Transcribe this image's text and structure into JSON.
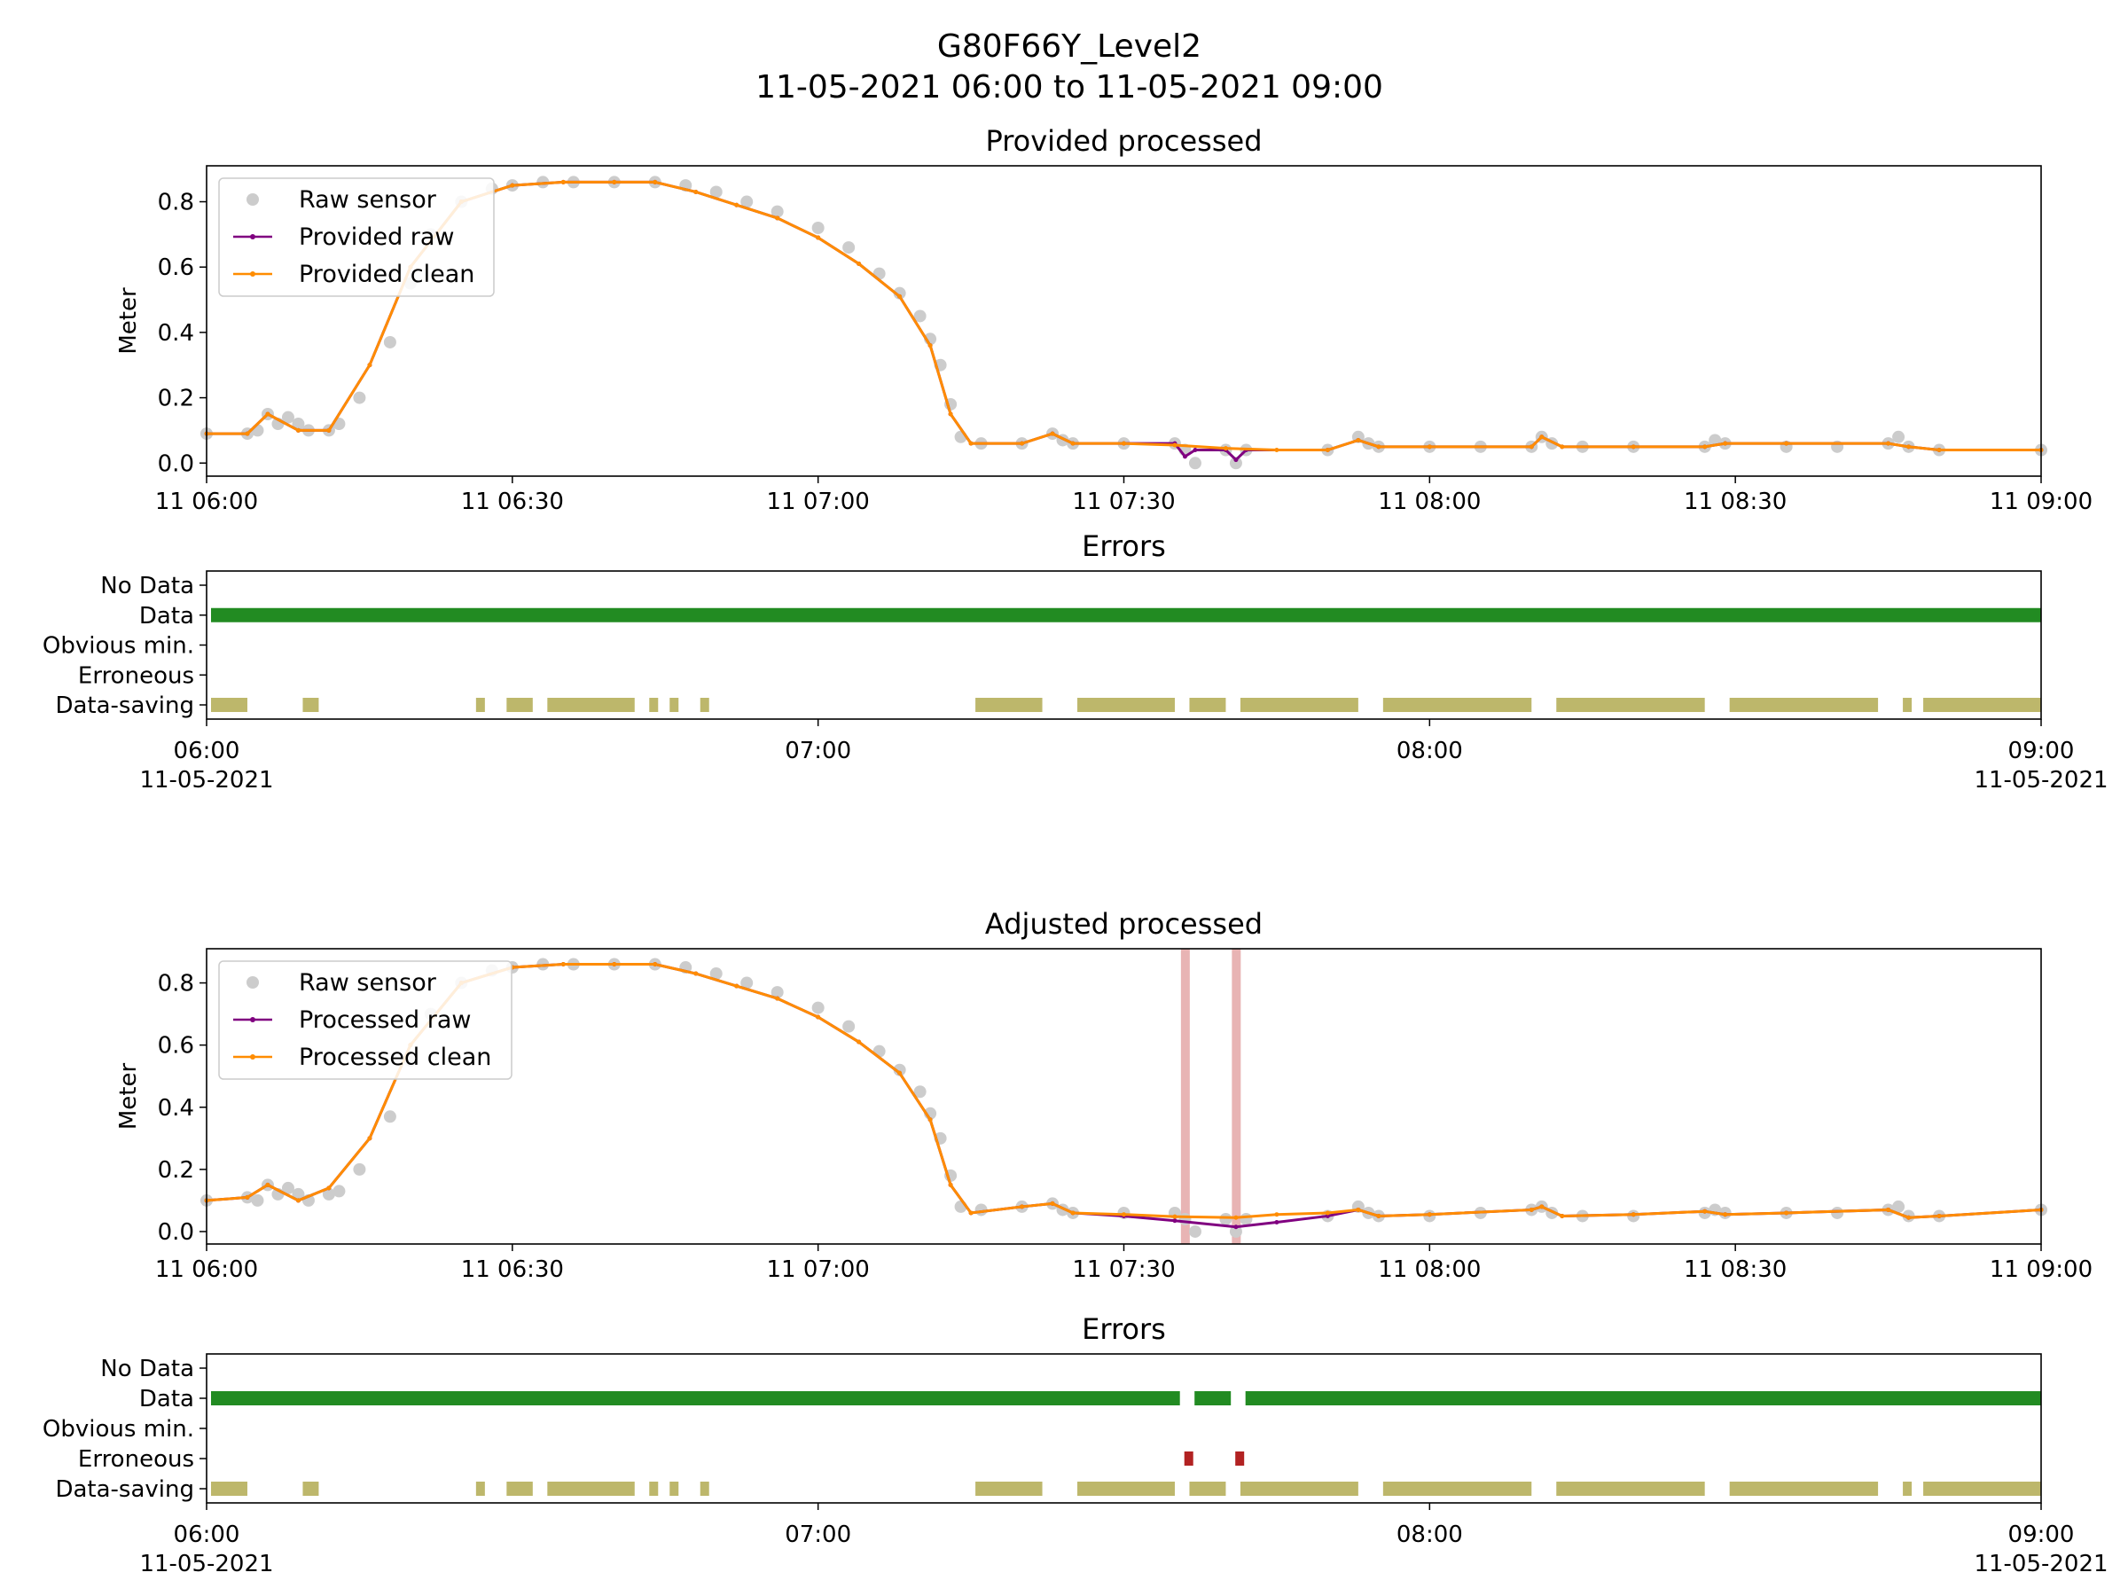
{
  "figure": {
    "title_line1": "G80F66Y_Level2",
    "title_line2": "11-05-2021 06:00 to 11-05-2021 09:00"
  },
  "colors": {
    "raw_sensor": "#cccccc",
    "provided_raw": "#800080",
    "clean": "#ff8c00",
    "data_bar": "#228b22",
    "data_saving_bar": "#bdb76b",
    "erroneous_bar": "#b22222",
    "erroneous_span": "#e8b4b4"
  },
  "chart_data": [
    {
      "type": "line",
      "title": "Provided processed",
      "ylabel": "Meter",
      "xlim": [
        "2021-05-11 06:00",
        "2021-05-11 09:00"
      ],
      "ylim": [
        -0.04,
        0.91
      ],
      "x_ticks": [
        "11 06:00",
        "11 06:30",
        "11 07:00",
        "11 07:30",
        "11 08:00",
        "11 08:30",
        "11 09:00"
      ],
      "y_ticks": [
        "0.0",
        "0.2",
        "0.4",
        "0.6",
        "0.8"
      ],
      "legend": {
        "position": "upper-left",
        "entries": [
          "Raw sensor",
          "Provided raw",
          "Provided clean"
        ]
      },
      "series": [
        {
          "name": "Raw sensor",
          "style": "scatter",
          "x": [
            "06:00",
            "06:04",
            "06:05",
            "06:06",
            "06:07",
            "06:08",
            "06:09",
            "06:10",
            "06:12",
            "06:13",
            "06:15",
            "06:18",
            "06:20",
            "06:22",
            "06:25",
            "06:28",
            "06:30",
            "06:33",
            "06:36",
            "06:40",
            "06:44",
            "06:47",
            "06:50",
            "06:53",
            "06:56",
            "07:00",
            "07:03",
            "07:06",
            "07:08",
            "07:10",
            "07:11",
            "07:12",
            "07:13",
            "07:14",
            "07:16",
            "07:20",
            "07:23",
            "07:24",
            "07:25",
            "07:30",
            "07:35",
            "07:36",
            "07:37",
            "07:40",
            "07:41",
            "07:42",
            "07:50",
            "07:53",
            "07:54",
            "07:55",
            "08:00",
            "08:05",
            "08:10",
            "08:11",
            "08:12",
            "08:15",
            "08:20",
            "08:27",
            "08:28",
            "08:29",
            "08:35",
            "08:40",
            "08:45",
            "08:46",
            "08:47",
            "08:50",
            "09:00"
          ],
          "y": [
            0.09,
            0.09,
            0.1,
            0.15,
            0.12,
            0.14,
            0.12,
            0.1,
            0.1,
            0.12,
            0.2,
            0.37,
            0.55,
            0.7,
            0.8,
            0.84,
            0.85,
            0.86,
            0.86,
            0.86,
            0.86,
            0.85,
            0.83,
            0.8,
            0.77,
            0.72,
            0.66,
            0.58,
            0.52,
            0.45,
            0.38,
            0.3,
            0.18,
            0.08,
            0.06,
            0.06,
            0.09,
            0.07,
            0.06,
            0.06,
            0.06,
            0.04,
            0.0,
            0.04,
            0.0,
            0.04,
            0.04,
            0.08,
            0.06,
            0.05,
            0.05,
            0.05,
            0.05,
            0.08,
            0.06,
            0.05,
            0.05,
            0.05,
            0.07,
            0.06,
            0.05,
            0.05,
            0.06,
            0.08,
            0.05,
            0.04,
            0.04
          ]
        },
        {
          "name": "Provided raw",
          "style": "line",
          "x": [
            "06:00",
            "06:04",
            "06:06",
            "06:09",
            "06:12",
            "06:16",
            "06:20",
            "06:25",
            "06:30",
            "06:35",
            "06:40",
            "06:44",
            "06:48",
            "06:52",
            "06:56",
            "07:00",
            "07:04",
            "07:08",
            "07:11",
            "07:13",
            "07:15",
            "07:20",
            "07:23",
            "07:25",
            "07:30",
            "07:35",
            "07:36",
            "07:37",
            "07:40",
            "07:41",
            "07:42",
            "07:50",
            "07:53",
            "07:55",
            "08:00",
            "08:10",
            "08:11",
            "08:13",
            "08:20",
            "08:27",
            "08:29",
            "08:35",
            "08:45",
            "08:47",
            "08:50",
            "09:00"
          ],
          "y": [
            0.09,
            0.09,
            0.15,
            0.1,
            0.1,
            0.3,
            0.6,
            0.8,
            0.85,
            0.86,
            0.86,
            0.86,
            0.83,
            0.79,
            0.75,
            0.69,
            0.61,
            0.51,
            0.36,
            0.15,
            0.06,
            0.06,
            0.09,
            0.06,
            0.06,
            0.06,
            0.02,
            0.04,
            0.04,
            0.01,
            0.04,
            0.04,
            0.07,
            0.05,
            0.05,
            0.05,
            0.08,
            0.05,
            0.05,
            0.05,
            0.06,
            0.06,
            0.06,
            0.05,
            0.04,
            0.04
          ]
        },
        {
          "name": "Provided clean",
          "style": "line",
          "x": [
            "06:00",
            "06:04",
            "06:06",
            "06:09",
            "06:12",
            "06:16",
            "06:20",
            "06:25",
            "06:30",
            "06:35",
            "06:40",
            "06:44",
            "06:48",
            "06:52",
            "06:56",
            "07:00",
            "07:04",
            "07:08",
            "07:11",
            "07:13",
            "07:15",
            "07:20",
            "07:23",
            "07:25",
            "07:30",
            "07:35",
            "07:40",
            "07:45",
            "07:50",
            "07:53",
            "07:55",
            "08:00",
            "08:10",
            "08:11",
            "08:13",
            "08:20",
            "08:27",
            "08:29",
            "08:35",
            "08:45",
            "08:47",
            "08:50",
            "09:00"
          ],
          "y": [
            0.09,
            0.09,
            0.15,
            0.1,
            0.1,
            0.3,
            0.6,
            0.8,
            0.85,
            0.86,
            0.86,
            0.86,
            0.83,
            0.79,
            0.75,
            0.69,
            0.61,
            0.51,
            0.36,
            0.15,
            0.06,
            0.06,
            0.09,
            0.06,
            0.06,
            0.055,
            0.045,
            0.04,
            0.04,
            0.07,
            0.05,
            0.05,
            0.05,
            0.08,
            0.05,
            0.05,
            0.05,
            0.06,
            0.06,
            0.06,
            0.05,
            0.04,
            0.04
          ]
        }
      ]
    },
    {
      "type": "timeline",
      "title": "Errors",
      "xlim": [
        "2021-05-11 06:00",
        "2021-05-11 09:00"
      ],
      "x_ticks": [
        [
          "06:00",
          "11-05-2021"
        ],
        [
          "07:00",
          ""
        ],
        [
          "08:00",
          ""
        ],
        [
          "09:00",
          "11-05-2021"
        ]
      ],
      "categories": [
        "No Data",
        "Data",
        "Obvious min.",
        "Erroneous",
        "Data-saving"
      ],
      "bars": [
        {
          "category": "Data",
          "spans": [
            [
              "06:00",
              "09:00"
            ]
          ]
        },
        {
          "category": "Data-saving",
          "spans": [
            [
              "06:00",
              "06:04"
            ],
            [
              "06:09",
              "06:11"
            ],
            [
              "06:26",
              "06:27"
            ],
            [
              "06:29",
              "06:32"
            ],
            [
              "06:33",
              "06:42"
            ],
            [
              "06:43",
              "06:44"
            ],
            [
              "06:45",
              "06:46"
            ],
            [
              "06:48",
              "06:49"
            ],
            [
              "07:15",
              "07:22"
            ],
            [
              "07:25",
              "07:35"
            ],
            [
              "07:36",
              "07:40"
            ],
            [
              "07:41",
              "07:53"
            ],
            [
              "07:55",
              "08:10"
            ],
            [
              "08:12",
              "08:27"
            ],
            [
              "08:29",
              "08:44"
            ],
            [
              "08:46",
              "08:47"
            ],
            [
              "08:48",
              "09:00"
            ]
          ]
        }
      ]
    },
    {
      "type": "line",
      "title": "Adjusted processed",
      "ylabel": "Meter",
      "xlim": [
        "2021-05-11 06:00",
        "2021-05-11 09:00"
      ],
      "ylim": [
        -0.04,
        0.91
      ],
      "x_ticks": [
        "11 06:00",
        "11 06:30",
        "11 07:00",
        "11 07:30",
        "11 08:00",
        "11 08:30",
        "11 09:00"
      ],
      "y_ticks": [
        "0.0",
        "0.2",
        "0.4",
        "0.6",
        "0.8"
      ],
      "legend": {
        "position": "upper-left",
        "entries": [
          "Raw sensor",
          "Processed raw",
          "Processed clean"
        ]
      },
      "spans": [
        [
          "07:35.6",
          "07:36.4"
        ],
        [
          "07:40.6",
          "07:41.4"
        ]
      ],
      "series": [
        {
          "name": "Raw sensor",
          "style": "scatter",
          "x": [
            "06:00",
            "06:04",
            "06:05",
            "06:06",
            "06:07",
            "06:08",
            "06:09",
            "06:10",
            "06:12",
            "06:13",
            "06:15",
            "06:18",
            "06:20",
            "06:22",
            "06:25",
            "06:28",
            "06:30",
            "06:33",
            "06:36",
            "06:40",
            "06:44",
            "06:47",
            "06:50",
            "06:53",
            "06:56",
            "07:00",
            "07:03",
            "07:06",
            "07:08",
            "07:10",
            "07:11",
            "07:12",
            "07:13",
            "07:14",
            "07:16",
            "07:20",
            "07:23",
            "07:24",
            "07:25",
            "07:30",
            "07:35",
            "07:36",
            "07:37",
            "07:40",
            "07:41",
            "07:42",
            "07:50",
            "07:53",
            "07:54",
            "07:55",
            "08:00",
            "08:05",
            "08:10",
            "08:11",
            "08:12",
            "08:15",
            "08:20",
            "08:27",
            "08:28",
            "08:29",
            "08:35",
            "08:40",
            "08:45",
            "08:46",
            "08:47",
            "08:50",
            "09:00"
          ],
          "y": [
            0.1,
            0.11,
            0.1,
            0.15,
            0.12,
            0.14,
            0.12,
            0.1,
            0.12,
            0.13,
            0.2,
            0.37,
            0.55,
            0.7,
            0.8,
            0.84,
            0.85,
            0.86,
            0.86,
            0.86,
            0.86,
            0.85,
            0.83,
            0.8,
            0.77,
            0.72,
            0.66,
            0.58,
            0.52,
            0.45,
            0.38,
            0.3,
            0.18,
            0.08,
            0.07,
            0.08,
            0.09,
            0.07,
            0.06,
            0.06,
            0.06,
            0.04,
            0.0,
            0.04,
            0.0,
            0.04,
            0.05,
            0.08,
            0.06,
            0.05,
            0.05,
            0.06,
            0.07,
            0.08,
            0.06,
            0.05,
            0.05,
            0.06,
            0.07,
            0.06,
            0.06,
            0.06,
            0.07,
            0.08,
            0.05,
            0.05,
            0.07
          ]
        },
        {
          "name": "Processed raw",
          "style": "line",
          "x": [
            "06:00",
            "06:04",
            "06:06",
            "06:09",
            "06:12",
            "06:16",
            "06:20",
            "06:25",
            "06:30",
            "06:35",
            "06:40",
            "06:44",
            "06:48",
            "06:52",
            "06:56",
            "07:00",
            "07:04",
            "07:08",
            "07:11",
            "07:13",
            "07:15",
            "07:20",
            "07:23",
            "07:25",
            "07:30",
            "07:35",
            "07:41",
            "07:45",
            "07:50",
            "07:53",
            "07:55",
            "08:00",
            "08:10",
            "08:11",
            "08:13",
            "08:20",
            "08:27",
            "08:29",
            "08:35",
            "08:45",
            "08:47",
            "08:50",
            "09:00"
          ],
          "y": [
            0.1,
            0.11,
            0.15,
            0.1,
            0.14,
            0.3,
            0.6,
            0.8,
            0.85,
            0.86,
            0.86,
            0.86,
            0.83,
            0.79,
            0.75,
            0.69,
            0.61,
            0.51,
            0.36,
            0.15,
            0.06,
            0.08,
            0.09,
            0.06,
            0.05,
            0.035,
            0.015,
            0.03,
            0.05,
            0.07,
            0.05,
            0.055,
            0.07,
            0.08,
            0.05,
            0.055,
            0.065,
            0.055,
            0.06,
            0.07,
            0.045,
            0.05,
            0.07
          ]
        },
        {
          "name": "Processed clean",
          "style": "line",
          "x": [
            "06:00",
            "06:04",
            "06:06",
            "06:09",
            "06:12",
            "06:16",
            "06:20",
            "06:25",
            "06:30",
            "06:35",
            "06:40",
            "06:44",
            "06:48",
            "06:52",
            "06:56",
            "07:00",
            "07:04",
            "07:08",
            "07:11",
            "07:13",
            "07:15",
            "07:20",
            "07:23",
            "07:25",
            "07:30",
            "07:35",
            "07:41",
            "07:45",
            "07:50",
            "07:53",
            "07:55",
            "08:00",
            "08:10",
            "08:11",
            "08:13",
            "08:20",
            "08:27",
            "08:29",
            "08:35",
            "08:45",
            "08:47",
            "08:50",
            "09:00"
          ],
          "y": [
            0.1,
            0.11,
            0.15,
            0.1,
            0.14,
            0.3,
            0.6,
            0.8,
            0.85,
            0.86,
            0.86,
            0.86,
            0.83,
            0.79,
            0.75,
            0.69,
            0.61,
            0.51,
            0.36,
            0.15,
            0.06,
            0.08,
            0.09,
            0.06,
            0.055,
            0.048,
            0.045,
            0.055,
            0.06,
            0.07,
            0.05,
            0.055,
            0.07,
            0.08,
            0.05,
            0.055,
            0.065,
            0.055,
            0.06,
            0.07,
            0.045,
            0.05,
            0.07
          ]
        }
      ]
    },
    {
      "type": "timeline",
      "title": "Errors",
      "xlim": [
        "2021-05-11 06:00",
        "2021-05-11 09:00"
      ],
      "x_ticks": [
        [
          "06:00",
          "11-05-2021"
        ],
        [
          "07:00",
          ""
        ],
        [
          "08:00",
          ""
        ],
        [
          "09:00",
          "11-05-2021"
        ]
      ],
      "categories": [
        "No Data",
        "Data",
        "Obvious min.",
        "Erroneous",
        "Data-saving"
      ],
      "bars": [
        {
          "category": "Data",
          "spans": [
            [
              "06:00",
              "07:35.5"
            ],
            [
              "07:36.5",
              "07:40.5"
            ],
            [
              "07:41.5",
              "09:00"
            ]
          ]
        },
        {
          "category": "Erroneous",
          "spans": [
            [
              "07:35.5",
              "07:36.5"
            ],
            [
              "07:40.5",
              "07:41.5"
            ]
          ]
        },
        {
          "category": "Data-saving",
          "spans": [
            [
              "06:00",
              "06:04"
            ],
            [
              "06:09",
              "06:11"
            ],
            [
              "06:26",
              "06:27"
            ],
            [
              "06:29",
              "06:32"
            ],
            [
              "06:33",
              "06:42"
            ],
            [
              "06:43",
              "06:44"
            ],
            [
              "06:45",
              "06:46"
            ],
            [
              "06:48",
              "06:49"
            ],
            [
              "07:15",
              "07:22"
            ],
            [
              "07:25",
              "07:35"
            ],
            [
              "07:36",
              "07:40"
            ],
            [
              "07:41",
              "07:53"
            ],
            [
              "07:55",
              "08:10"
            ],
            [
              "08:12",
              "08:27"
            ],
            [
              "08:29",
              "08:44"
            ],
            [
              "08:46",
              "08:47"
            ],
            [
              "08:48",
              "09:00"
            ]
          ]
        }
      ]
    }
  ]
}
